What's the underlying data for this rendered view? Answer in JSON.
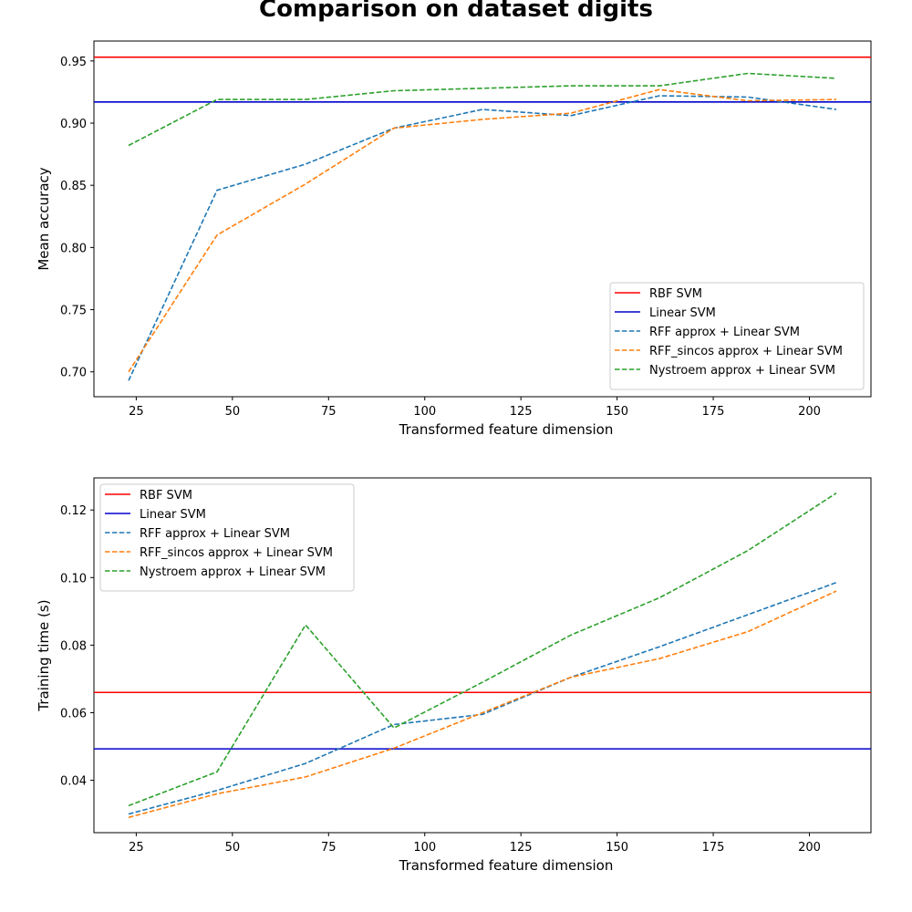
{
  "figure_title": "Comparison on dataset digits",
  "colors": {
    "rbf": "#ff0000",
    "linear": "#0000cc",
    "rff": "#1f77b4",
    "rff_sincos": "#ff7f0e",
    "nystroem": "#2ca02c"
  },
  "chart_data": [
    {
      "type": "line",
      "title": "",
      "xlabel": "Transformed feature dimension",
      "ylabel": "Mean accuracy",
      "xlim": [
        14,
        216
      ],
      "ylim": [
        0.68,
        0.966
      ],
      "xticks": [
        25,
        50,
        75,
        100,
        125,
        150,
        175,
        200
      ],
      "yticks": [
        0.7,
        0.75,
        0.8,
        0.85,
        0.9,
        0.95
      ],
      "ytick_labels": [
        "0.70",
        "0.75",
        "0.80",
        "0.85",
        "0.90",
        "0.95"
      ],
      "grid": false,
      "legend_position": "lower-right",
      "hlines": [
        {
          "name": "RBF SVM",
          "y": 0.953,
          "color": "#ff0000"
        },
        {
          "name": "Linear SVM",
          "y": 0.917,
          "color": "#0000cc"
        }
      ],
      "x": [
        23,
        46,
        69,
        92,
        115,
        138,
        161,
        184,
        207
      ],
      "series": [
        {
          "name": "RFF approx + Linear SVM",
          "color": "#1f77b4",
          "dashed": true,
          "values": [
            0.693,
            0.846,
            0.867,
            0.896,
            0.911,
            0.906,
            0.922,
            0.921,
            0.911
          ]
        },
        {
          "name": "RFF_sincos approx + Linear SVM",
          "color": "#ff7f0e",
          "dashed": true,
          "values": [
            0.7,
            0.81,
            0.851,
            0.896,
            0.903,
            0.908,
            0.927,
            0.918,
            0.919
          ]
        },
        {
          "name": "Nystroem approx + Linear SVM",
          "color": "#2ca02c",
          "dashed": true,
          "values": [
            0.882,
            0.919,
            0.919,
            0.926,
            0.928,
            0.93,
            0.93,
            0.94,
            0.936
          ]
        }
      ]
    },
    {
      "type": "line",
      "title": "",
      "xlabel": "Transformed feature dimension",
      "ylabel": "Training time (s)",
      "xlim": [
        14,
        216
      ],
      "ylim": [
        0.0245,
        0.1295
      ],
      "xticks": [
        25,
        50,
        75,
        100,
        125,
        150,
        175,
        200
      ],
      "yticks": [
        0.04,
        0.06,
        0.08,
        0.1,
        0.12
      ],
      "ytick_labels": [
        "0.04",
        "0.06",
        "0.08",
        "0.10",
        "0.12"
      ],
      "grid": false,
      "legend_position": "upper-left",
      "hlines": [
        {
          "name": "RBF SVM",
          "y": 0.066,
          "color": "#ff0000"
        },
        {
          "name": "Linear SVM",
          "y": 0.0493,
          "color": "#0000cc"
        }
      ],
      "x": [
        23,
        46,
        69,
        92,
        115,
        138,
        161,
        184,
        207
      ],
      "series": [
        {
          "name": "RFF approx + Linear SVM",
          "color": "#1f77b4",
          "dashed": true,
          "values": [
            0.03,
            0.037,
            0.045,
            0.0565,
            0.0595,
            0.0705,
            0.0795,
            0.089,
            0.0985
          ]
        },
        {
          "name": "RFF_sincos approx + Linear SVM",
          "color": "#ff7f0e",
          "dashed": true,
          "values": [
            0.029,
            0.036,
            0.041,
            0.0495,
            0.06,
            0.0705,
            0.076,
            0.084,
            0.096
          ]
        },
        {
          "name": "Nystroem approx + Linear SVM",
          "color": "#2ca02c",
          "dashed": true,
          "values": [
            0.0325,
            0.0425,
            0.086,
            0.0555,
            0.069,
            0.083,
            0.094,
            0.108,
            0.125
          ]
        }
      ]
    }
  ]
}
